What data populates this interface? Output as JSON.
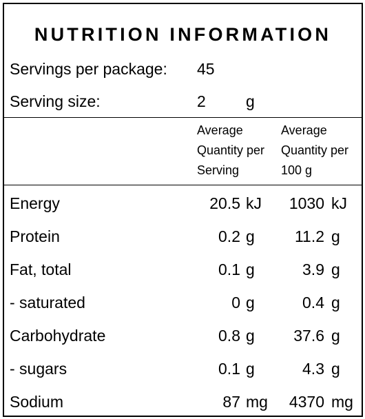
{
  "panel": {
    "title": "NUTRITION INFORMATION",
    "servings_label": "Servings per package:",
    "servings_value": "45",
    "serving_size_label": "Serving size:",
    "serving_size_value": "2",
    "serving_size_unit": "g"
  },
  "columns": {
    "per_serving_header": "Average\nQuantity per\nServing",
    "per_100g_header": "Average\nQuantity per\n100 g"
  },
  "rows": [
    {
      "name": "Energy",
      "serving": "20.5",
      "serving_unit": "kJ",
      "per100": "1030",
      "per100_unit": "kJ"
    },
    {
      "name": "Protein",
      "serving": "0.2",
      "serving_unit": "g",
      "per100": "11.2",
      "per100_unit": "g"
    },
    {
      "name": "Fat, total",
      "serving": "0.1",
      "serving_unit": "g",
      "per100": "3.9",
      "per100_unit": "g"
    },
    {
      "name": "- saturated",
      "serving": "0",
      "serving_unit": "g",
      "per100": "0.4",
      "per100_unit": "g"
    },
    {
      "name": "Carbohydrate",
      "serving": "0.8",
      "serving_unit": "g",
      "per100": "37.6",
      "per100_unit": "g"
    },
    {
      "name": "- sugars",
      "serving": "0.1",
      "serving_unit": "g",
      "per100": "4.3",
      "per100_unit": "g"
    },
    {
      "name": "Sodium",
      "serving": "87",
      "serving_unit": "mg",
      "per100": "4370",
      "per100_unit": "mg"
    }
  ]
}
